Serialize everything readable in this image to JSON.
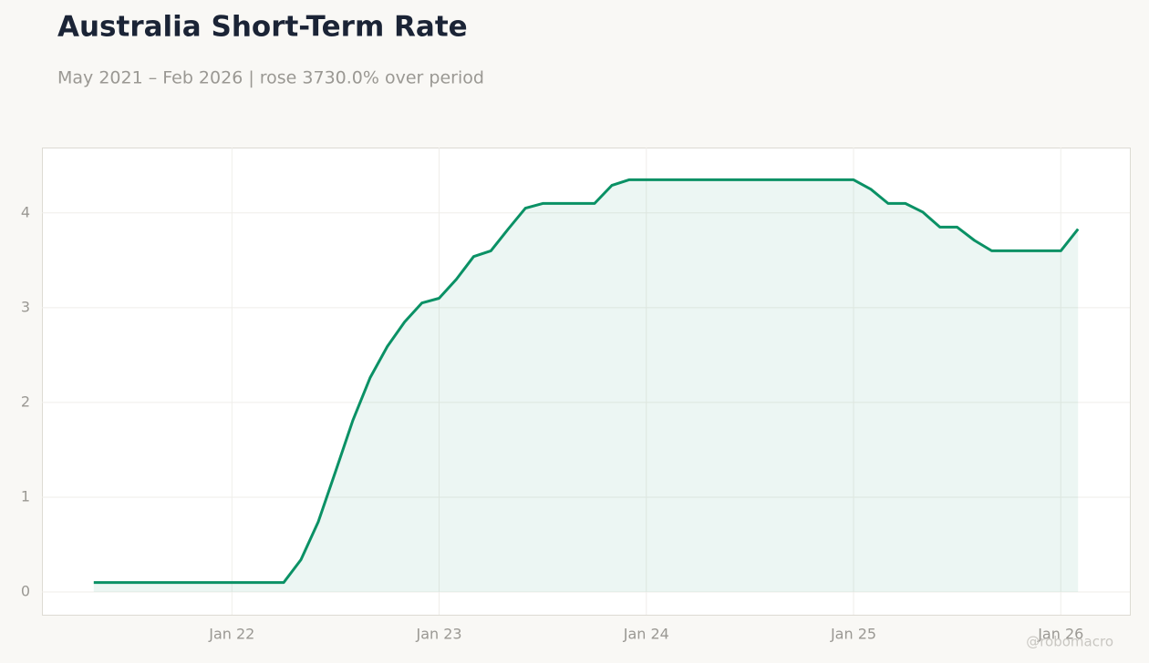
{
  "chart_data": {
    "type": "line",
    "title": "Australia Short-Term Rate",
    "subtitle": "May 2021 – Feb 2026 | rose 3730.0% over period",
    "watermark": "@robomacro",
    "x": [
      "2021-05",
      "2021-06",
      "2021-07",
      "2021-08",
      "2021-09",
      "2021-10",
      "2021-11",
      "2021-12",
      "2022-01",
      "2022-02",
      "2022-03",
      "2022-04",
      "2022-05",
      "2022-06",
      "2022-07",
      "2022-08",
      "2022-09",
      "2022-10",
      "2022-11",
      "2022-12",
      "2023-01",
      "2023-02",
      "2023-03",
      "2023-04",
      "2023-05",
      "2023-06",
      "2023-07",
      "2023-08",
      "2023-09",
      "2023-10",
      "2023-11",
      "2023-12",
      "2024-01",
      "2024-02",
      "2024-03",
      "2024-04",
      "2024-05",
      "2024-06",
      "2024-07",
      "2024-08",
      "2024-09",
      "2024-10",
      "2024-11",
      "2024-12",
      "2025-01",
      "2025-02",
      "2025-03",
      "2025-04",
      "2025-05",
      "2025-06",
      "2025-07",
      "2025-08",
      "2025-09",
      "2025-10",
      "2025-11",
      "2025-12",
      "2026-01",
      "2026-02"
    ],
    "series": [
      {
        "name": "Short-Term Rate",
        "color": "#0a9165",
        "values": [
          0.1,
          0.1,
          0.1,
          0.1,
          0.1,
          0.1,
          0.1,
          0.1,
          0.1,
          0.1,
          0.1,
          0.1,
          0.34,
          0.74,
          1.27,
          1.81,
          2.26,
          2.59,
          2.85,
          3.05,
          3.1,
          3.3,
          3.54,
          3.6,
          3.83,
          4.05,
          4.1,
          4.1,
          4.1,
          4.1,
          4.29,
          4.35,
          4.35,
          4.35,
          4.35,
          4.35,
          4.35,
          4.35,
          4.35,
          4.35,
          4.35,
          4.35,
          4.35,
          4.35,
          4.35,
          4.25,
          4.1,
          4.1,
          4.01,
          3.85,
          3.85,
          3.71,
          3.6,
          3.6,
          3.6,
          3.6,
          3.6,
          3.83
        ]
      }
    ],
    "xlim": [
      "2021-02",
      "2026-05"
    ],
    "xticks": [
      {
        "value": "2022-01",
        "label": "Jan 22"
      },
      {
        "value": "2023-01",
        "label": "Jan 23"
      },
      {
        "value": "2024-01",
        "label": "Jan 24"
      },
      {
        "value": "2025-01",
        "label": "Jan 25"
      },
      {
        "value": "2026-01",
        "label": "Jan 26"
      }
    ],
    "ylim": [
      -0.24,
      4.69
    ],
    "yticks": [
      0,
      1,
      2,
      3,
      4
    ],
    "grid": true,
    "area_fill": true
  }
}
